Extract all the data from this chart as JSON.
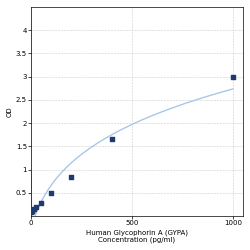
{
  "x_data": [
    1.56,
    3.13,
    6.25,
    12.5,
    25,
    50,
    100,
    200,
    400,
    1000
  ],
  "y_data": [
    0.08,
    0.1,
    0.12,
    0.15,
    0.2,
    0.28,
    0.5,
    0.85,
    1.65,
    3.0
  ],
  "xlabel_line1": "Human Glycophorin A (GYPA)",
  "xlabel_line2": "Concentration (pg/ml)",
  "ylabel": "OD",
  "xlim": [
    0,
    1050
  ],
  "ylim": [
    0,
    4.5
  ],
  "yticks": [
    0.5,
    1.0,
    1.5,
    2.0,
    2.5,
    3.0,
    3.5,
    4.0
  ],
  "ytick_labels": [
    "0.5",
    "1",
    "1.5",
    "2",
    "2.5",
    "3",
    "3.5",
    "4"
  ],
  "xticks": [
    0,
    500,
    1000
  ],
  "xtick_labels": [
    "0",
    "500",
    "1000"
  ],
  "marker_color": "#1F3A6E",
  "line_color": "#A8C8E8",
  "marker_size": 9,
  "bg_color": "#FFFFFF",
  "grid_color": "#CCCCCC",
  "axis_fontsize": 5
}
